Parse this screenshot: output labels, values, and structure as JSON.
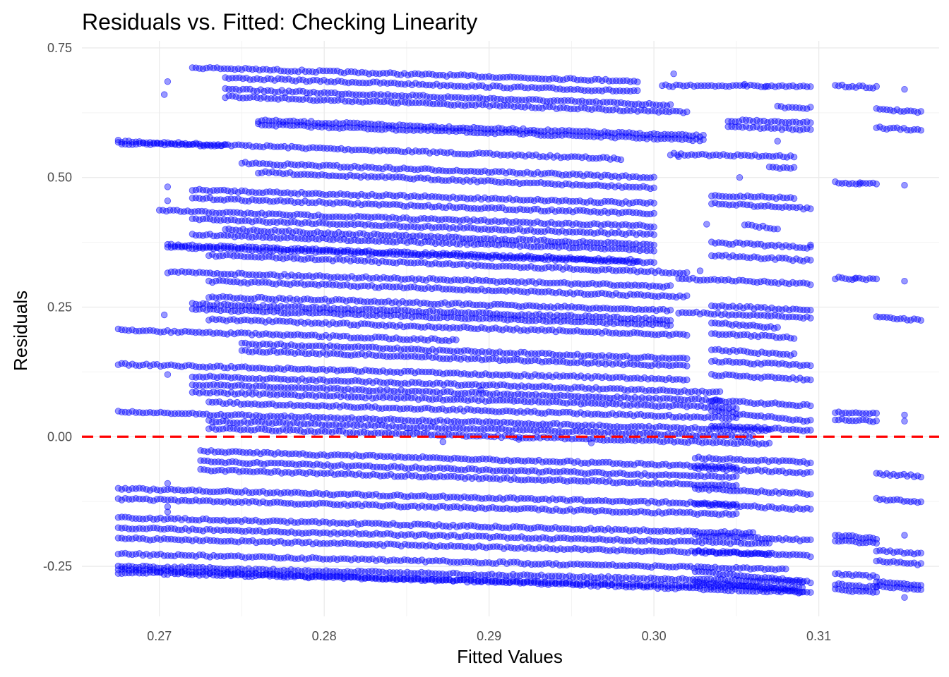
{
  "chart_data": {
    "type": "scatter",
    "title": "Residuals vs. Fitted: Checking Linearity",
    "xlabel": "Fitted Values",
    "ylabel": "Residuals",
    "xlim": [
      0.2653,
      0.3173
    ],
    "ylim": [
      -0.3465,
      0.7635
    ],
    "x_ticks": [
      0.27,
      0.28,
      0.29,
      0.3,
      0.31
    ],
    "x_tick_labels": [
      "0.27",
      "0.28",
      "0.29",
      "0.30",
      "0.31"
    ],
    "y_ticks": [
      -0.25,
      0.0,
      0.25,
      0.5,
      0.75
    ],
    "y_tick_labels": [
      "-0.25",
      "0.00",
      "0.25",
      "0.50",
      "0.75"
    ],
    "grid": true,
    "reference_line": {
      "y": 0.0,
      "style": "dashed",
      "color": "#ff0000"
    },
    "point_color": "#0000ff",
    "point_alpha": 0.4,
    "bands": [
      {
        "x": [
          0.2675,
          0.298
        ],
        "y": [
          0.57,
          0.536
        ]
      },
      {
        "x": [
          0.2675,
          0.274
        ],
        "y": [
          0.566,
          0.562
        ]
      },
      {
        "x": [
          0.272,
          0.299
        ],
        "y": [
          0.712,
          0.686
        ]
      },
      {
        "x": [
          0.274,
          0.299
        ],
        "y": [
          0.692,
          0.666
        ]
      },
      {
        "x": [
          0.274,
          0.301
        ],
        "y": [
          0.67,
          0.64
        ]
      },
      {
        "x": [
          0.274,
          0.302
        ],
        "y": [
          0.656,
          0.626
        ]
      },
      {
        "x": [
          0.276,
          0.303
        ],
        "y": [
          0.61,
          0.58
        ]
      },
      {
        "x": [
          0.276,
          0.303
        ],
        "y": [
          0.602,
          0.572
        ]
      },
      {
        "x": [
          0.275,
          0.3
        ],
        "y": [
          0.528,
          0.5
        ]
      },
      {
        "x": [
          0.276,
          0.3
        ],
        "y": [
          0.51,
          0.48
        ]
      },
      {
        "x": [
          0.272,
          0.3
        ],
        "y": [
          0.476,
          0.45
        ]
      },
      {
        "x": [
          0.272,
          0.3
        ],
        "y": [
          0.46,
          0.43
        ]
      },
      {
        "x": [
          0.27,
          0.3
        ],
        "y": [
          0.436,
          0.406
        ]
      },
      {
        "x": [
          0.272,
          0.3
        ],
        "y": [
          0.42,
          0.39
        ]
      },
      {
        "x": [
          0.274,
          0.3
        ],
        "y": [
          0.4,
          0.37
        ]
      },
      {
        "x": [
          0.272,
          0.3
        ],
        "y": [
          0.39,
          0.36
        ]
      },
      {
        "x": [
          0.2705,
          0.299
        ],
        "y": [
          0.37,
          0.34
        ]
      },
      {
        "x": [
          0.2705,
          0.3
        ],
        "y": [
          0.366,
          0.336
        ]
      },
      {
        "x": [
          0.273,
          0.302
        ],
        "y": [
          0.35,
          0.316
        ]
      },
      {
        "x": [
          0.2705,
          0.301
        ],
        "y": [
          0.318,
          0.29
        ]
      },
      {
        "x": [
          0.273,
          0.302
        ],
        "y": [
          0.3,
          0.27
        ]
      },
      {
        "x": [
          0.273,
          0.301
        ],
        "y": [
          0.27,
          0.244
        ]
      },
      {
        "x": [
          0.272,
          0.301
        ],
        "y": [
          0.256,
          0.226
        ]
      },
      {
        "x": [
          0.272,
          0.301
        ],
        "y": [
          0.246,
          0.216
        ]
      },
      {
        "x": [
          0.273,
          0.302
        ],
        "y": [
          0.226,
          0.196
        ]
      },
      {
        "x": [
          0.2675,
          0.288
        ],
        "y": [
          0.206,
          0.186
        ]
      },
      {
        "x": [
          0.275,
          0.302
        ],
        "y": [
          0.18,
          0.15
        ]
      },
      {
        "x": [
          0.275,
          0.302
        ],
        "y": [
          0.166,
          0.136
        ]
      },
      {
        "x": [
          0.2675,
          0.302
        ],
        "y": [
          0.14,
          0.11
        ]
      },
      {
        "x": [
          0.272,
          0.304
        ],
        "y": [
          0.116,
          0.086
        ]
      },
      {
        "x": [
          0.272,
          0.304
        ],
        "y": [
          0.1,
          0.07
        ]
      },
      {
        "x": [
          0.272,
          0.305
        ],
        "y": [
          0.086,
          0.056
        ]
      },
      {
        "x": [
          0.273,
          0.305
        ],
        "y": [
          0.066,
          0.036
        ]
      },
      {
        "x": [
          0.2675,
          0.307
        ],
        "y": [
          0.048,
          0.012
        ]
      },
      {
        "x": [
          0.273,
          0.306
        ],
        "y": [
          0.03,
          0.0
        ]
      },
      {
        "x": [
          0.273,
          0.307
        ],
        "y": [
          0.016,
          -0.014
        ]
      },
      {
        "x": [
          0.2725,
          0.305
        ],
        "y": [
          -0.028,
          -0.058
        ]
      },
      {
        "x": [
          0.2725,
          0.305
        ],
        "y": [
          -0.048,
          -0.078
        ]
      },
      {
        "x": [
          0.2725,
          0.305
        ],
        "y": [
          -0.064,
          -0.094
        ]
      },
      {
        "x": [
          0.2675,
          0.305
        ],
        "y": [
          -0.1,
          -0.13
        ]
      },
      {
        "x": [
          0.2675,
          0.305
        ],
        "y": [
          -0.12,
          -0.15
        ]
      },
      {
        "x": [
          0.2675,
          0.306
        ],
        "y": [
          -0.156,
          -0.186
        ]
      },
      {
        "x": [
          0.2675,
          0.307
        ],
        "y": [
          -0.176,
          -0.206
        ]
      },
      {
        "x": [
          0.2675,
          0.307
        ],
        "y": [
          -0.196,
          -0.226
        ]
      },
      {
        "x": [
          0.2675,
          0.308
        ],
        "y": [
          -0.226,
          -0.256
        ]
      },
      {
        "x": [
          0.2675,
          0.309
        ],
        "y": [
          -0.25,
          -0.28
        ]
      },
      {
        "x": [
          0.2675,
          0.309
        ],
        "y": [
          -0.262,
          -0.292
        ]
      },
      {
        "x": [
          0.2675,
          0.309
        ],
        "y": [
          -0.256,
          -0.3
        ]
      },
      {
        "x": [
          0.3005,
          0.3095
        ],
        "y": [
          0.677,
          0.676
        ]
      },
      {
        "x": [
          0.3075,
          0.3095
        ],
        "y": [
          0.636,
          0.634
        ]
      },
      {
        "x": [
          0.3045,
          0.3095
        ],
        "y": [
          0.598,
          0.592
        ]
      },
      {
        "x": [
          0.3045,
          0.3095
        ],
        "y": [
          0.61,
          0.606
        ]
      },
      {
        "x": [
          0.301,
          0.3085
        ],
        "y": [
          0.545,
          0.54
        ]
      },
      {
        "x": [
          0.307,
          0.3085
        ],
        "y": [
          0.52,
          0.518
        ]
      },
      {
        "x": [
          0.3035,
          0.3085
        ],
        "y": [
          0.465,
          0.46
        ]
      },
      {
        "x": [
          0.3035,
          0.3095
        ],
        "y": [
          0.45,
          0.44
        ]
      },
      {
        "x": [
          0.3055,
          0.3075
        ],
        "y": [
          0.41,
          0.4
        ]
      },
      {
        "x": [
          0.3035,
          0.3095
        ],
        "y": [
          0.375,
          0.365
        ]
      },
      {
        "x": [
          0.3035,
          0.3095
        ],
        "y": [
          0.35,
          0.34
        ]
      },
      {
        "x": [
          0.3015,
          0.3095
        ],
        "y": [
          0.305,
          0.295
        ]
      },
      {
        "x": [
          0.3015,
          0.3095
        ],
        "y": [
          0.24,
          0.23
        ]
      },
      {
        "x": [
          0.3035,
          0.3095
        ],
        "y": [
          0.253,
          0.243
        ]
      },
      {
        "x": [
          0.3035,
          0.3075
        ],
        "y": [
          0.22,
          0.21
        ]
      },
      {
        "x": [
          0.3035,
          0.3085
        ],
        "y": [
          0.2,
          0.19
        ]
      },
      {
        "x": [
          0.3035,
          0.3085
        ],
        "y": [
          0.168,
          0.158
        ]
      },
      {
        "x": [
          0.3035,
          0.3095
        ],
        "y": [
          0.145,
          0.138
        ]
      },
      {
        "x": [
          0.3035,
          0.3095
        ],
        "y": [
          0.12,
          0.11
        ]
      },
      {
        "x": [
          0.3035,
          0.3095
        ],
        "y": [
          0.07,
          0.06
        ]
      },
      {
        "x": [
          0.3035,
          0.3095
        ],
        "y": [
          0.05,
          0.03
        ]
      },
      {
        "x": [
          0.3035,
          0.3095
        ],
        "y": [
          0.022,
          0.012
        ]
      },
      {
        "x": [
          0.3025,
          0.3095
        ],
        "y": [
          -0.04,
          -0.05
        ]
      },
      {
        "x": [
          0.3025,
          0.3095
        ],
        "y": [
          -0.06,
          -0.07
        ]
      },
      {
        "x": [
          0.3025,
          0.3095
        ],
        "y": [
          -0.1,
          -0.11
        ]
      },
      {
        "x": [
          0.3025,
          0.3095
        ],
        "y": [
          -0.13,
          -0.14
        ]
      },
      {
        "x": [
          0.3025,
          0.3095
        ],
        "y": [
          -0.19,
          -0.2
        ]
      },
      {
        "x": [
          0.3025,
          0.3095
        ],
        "y": [
          -0.22,
          -0.23
        ]
      },
      {
        "x": [
          0.3025,
          0.3095
        ],
        "y": [
          -0.26,
          -0.28
        ]
      },
      {
        "x": [
          0.3025,
          0.3095
        ],
        "y": [
          -0.28,
          -0.3
        ]
      },
      {
        "x": [
          0.311,
          0.3135
        ],
        "y": [
          0.677,
          0.674
        ]
      },
      {
        "x": [
          0.311,
          0.3135
        ],
        "y": [
          0.49,
          0.488
        ]
      },
      {
        "x": [
          0.311,
          0.3135
        ],
        "y": [
          0.306,
          0.303
        ]
      },
      {
        "x": [
          0.311,
          0.3135
        ],
        "y": [
          0.048,
          0.044
        ]
      },
      {
        "x": [
          0.311,
          0.3135
        ],
        "y": [
          0.034,
          0.03
        ]
      },
      {
        "x": [
          0.311,
          0.3135
        ],
        "y": [
          -0.19,
          -0.196
        ]
      },
      {
        "x": [
          0.311,
          0.3135
        ],
        "y": [
          -0.2,
          -0.206
        ]
      },
      {
        "x": [
          0.311,
          0.3135
        ],
        "y": [
          -0.265,
          -0.27
        ]
      },
      {
        "x": [
          0.311,
          0.3135
        ],
        "y": [
          -0.285,
          -0.29
        ]
      },
      {
        "x": [
          0.311,
          0.3135
        ],
        "y": [
          -0.295,
          -0.3
        ]
      },
      {
        "x": [
          0.3135,
          0.3162
        ],
        "y": [
          0.632,
          0.627
        ]
      },
      {
        "x": [
          0.3135,
          0.3162
        ],
        "y": [
          0.596,
          0.592
        ]
      },
      {
        "x": [
          0.3135,
          0.3162
        ],
        "y": [
          0.23,
          0.225
        ]
      },
      {
        "x": [
          0.3135,
          0.3162
        ],
        "y": [
          -0.072,
          -0.076
        ]
      },
      {
        "x": [
          0.3135,
          0.3162
        ],
        "y": [
          -0.12,
          -0.126
        ]
      },
      {
        "x": [
          0.3135,
          0.3162
        ],
        "y": [
          -0.22,
          -0.226
        ]
      },
      {
        "x": [
          0.3135,
          0.3162
        ],
        "y": [
          -0.24,
          -0.246
        ]
      },
      {
        "x": [
          0.3135,
          0.3162
        ],
        "y": [
          -0.28,
          -0.288
        ]
      },
      {
        "x": [
          0.3135,
          0.3162
        ],
        "y": [
          -0.288,
          -0.295
        ]
      }
    ],
    "sparse_points": [
      {
        "x": 0.3055,
        "y": 0.68
      },
      {
        "x": 0.3068,
        "y": 0.676
      },
      {
        "x": 0.3015,
        "y": 0.54
      },
      {
        "x": 0.3052,
        "y": 0.5
      },
      {
        "x": 0.3125,
        "y": 0.49
      },
      {
        "x": 0.3122,
        "y": 0.305
      },
      {
        "x": 0.3152,
        "y": 0.67
      },
      {
        "x": 0.3152,
        "y": 0.485
      },
      {
        "x": 0.3152,
        "y": 0.3
      },
      {
        "x": 0.3152,
        "y": 0.042
      },
      {
        "x": 0.3152,
        "y": 0.03
      },
      {
        "x": 0.3152,
        "y": -0.19
      },
      {
        "x": 0.3152,
        "y": -0.31
      },
      {
        "x": 0.3095,
        "y": 0.37
      },
      {
        "x": 0.3075,
        "y": 0.57
      },
      {
        "x": 0.3012,
        "y": 0.7
      },
      {
        "x": 0.3032,
        "y": 0.41
      },
      {
        "x": 0.3028,
        "y": 0.32
      },
      {
        "x": 0.2705,
        "y": 0.685
      },
      {
        "x": 0.2703,
        "y": 0.66
      },
      {
        "x": 0.2703,
        "y": 0.235
      },
      {
        "x": 0.2705,
        "y": 0.482
      },
      {
        "x": 0.2705,
        "y": 0.455
      },
      {
        "x": 0.2705,
        "y": 0.12
      },
      {
        "x": 0.2705,
        "y": -0.09
      },
      {
        "x": 0.2705,
        "y": -0.135
      },
      {
        "x": 0.2705,
        "y": -0.145
      },
      {
        "x": 0.2872,
        "y": -0.01
      },
      {
        "x": 0.2918,
        "y": -0.005
      },
      {
        "x": 0.2962,
        "y": -0.012
      },
      {
        "x": 0.2895,
        "y": 0.09
      }
    ]
  }
}
